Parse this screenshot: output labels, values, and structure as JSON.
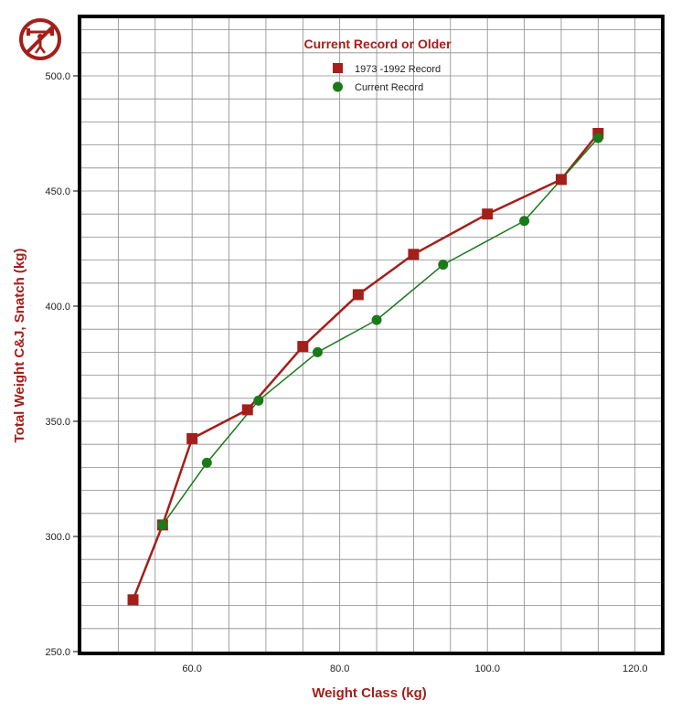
{
  "chart_data": {
    "type": "line",
    "legend_title": "Current Record or Older",
    "xlabel": "Weight Class (kg)",
    "ylabel": "Total Weight C&J, Snatch (kg)",
    "xlim": [
      45,
      123.5
    ],
    "ylim": [
      250,
      525
    ],
    "x_ticks": [
      "60.0",
      "80.0",
      "100.0",
      "120.0"
    ],
    "x_tick_values": [
      60,
      80,
      100,
      120
    ],
    "y_ticks": [
      "250.0",
      "300.0",
      "350.0",
      "400.0",
      "450.0",
      "500.0"
    ],
    "y_tick_values": [
      250,
      300,
      350,
      400,
      450,
      500
    ],
    "grid": true,
    "legend_position": "top-center",
    "series": [
      {
        "name": "1973 -1992 Record",
        "color": "#a31f1a",
        "marker": "square",
        "x": [
          52,
          56,
          60,
          67.5,
          75,
          82.5,
          90,
          100,
          110,
          115
        ],
        "y": [
          272.5,
          305,
          342.5,
          355,
          382.5,
          405,
          422.5,
          440,
          455,
          475
        ]
      },
      {
        "name": "Current Record",
        "color": "#1a7a1a",
        "marker": "circle",
        "x": [
          56,
          62,
          69,
          77,
          85,
          94,
          105,
          115
        ],
        "y": [
          305,
          332,
          359,
          380,
          394,
          418,
          437,
          473
        ]
      }
    ]
  },
  "icon": "weightlifter-icon"
}
